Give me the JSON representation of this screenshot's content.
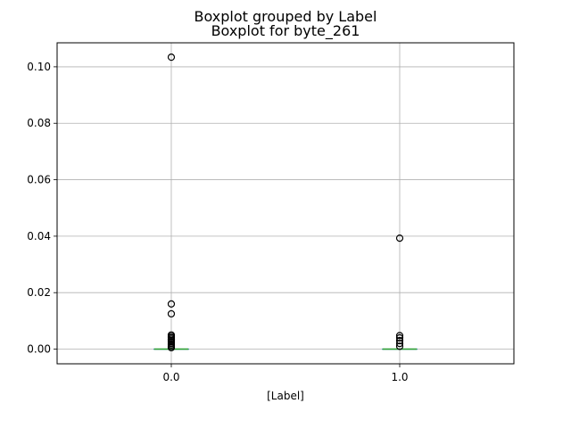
{
  "chart_data": {
    "type": "box",
    "suptitle": "Boxplot grouped by Label",
    "title": "Boxplot for byte_261",
    "xlabel": "[Label]",
    "ylabel": "",
    "categories": [
      "0.0",
      "1.0"
    ],
    "yticks": [
      "0.00",
      "0.02",
      "0.04",
      "0.06",
      "0.08",
      "0.10"
    ],
    "ylim": [
      -0.0052,
      0.1085
    ],
    "grid": true,
    "boxes": [
      {
        "category": "0.0",
        "q1": 0.0,
        "median": 0.0,
        "q3": 0.0,
        "whisker_low": 0.0,
        "whisker_high": 0.0,
        "outliers": [
          0.1034,
          0.016,
          0.0125,
          0.005,
          0.0045,
          0.004,
          0.0035,
          0.003,
          0.0025,
          0.002,
          0.0015,
          0.001,
          0.0005
        ]
      },
      {
        "category": "1.0",
        "q1": 0.0,
        "median": 0.0,
        "q3": 0.0,
        "whisker_low": 0.0,
        "whisker_high": 0.0,
        "outliers": [
          0.0393,
          0.0048,
          0.004,
          0.003,
          0.002,
          0.001
        ]
      }
    ],
    "colors": {
      "box": "#1f77b4",
      "median": "#2ca02c",
      "grid": "#b0b0b0",
      "outlier": "#000000"
    }
  }
}
